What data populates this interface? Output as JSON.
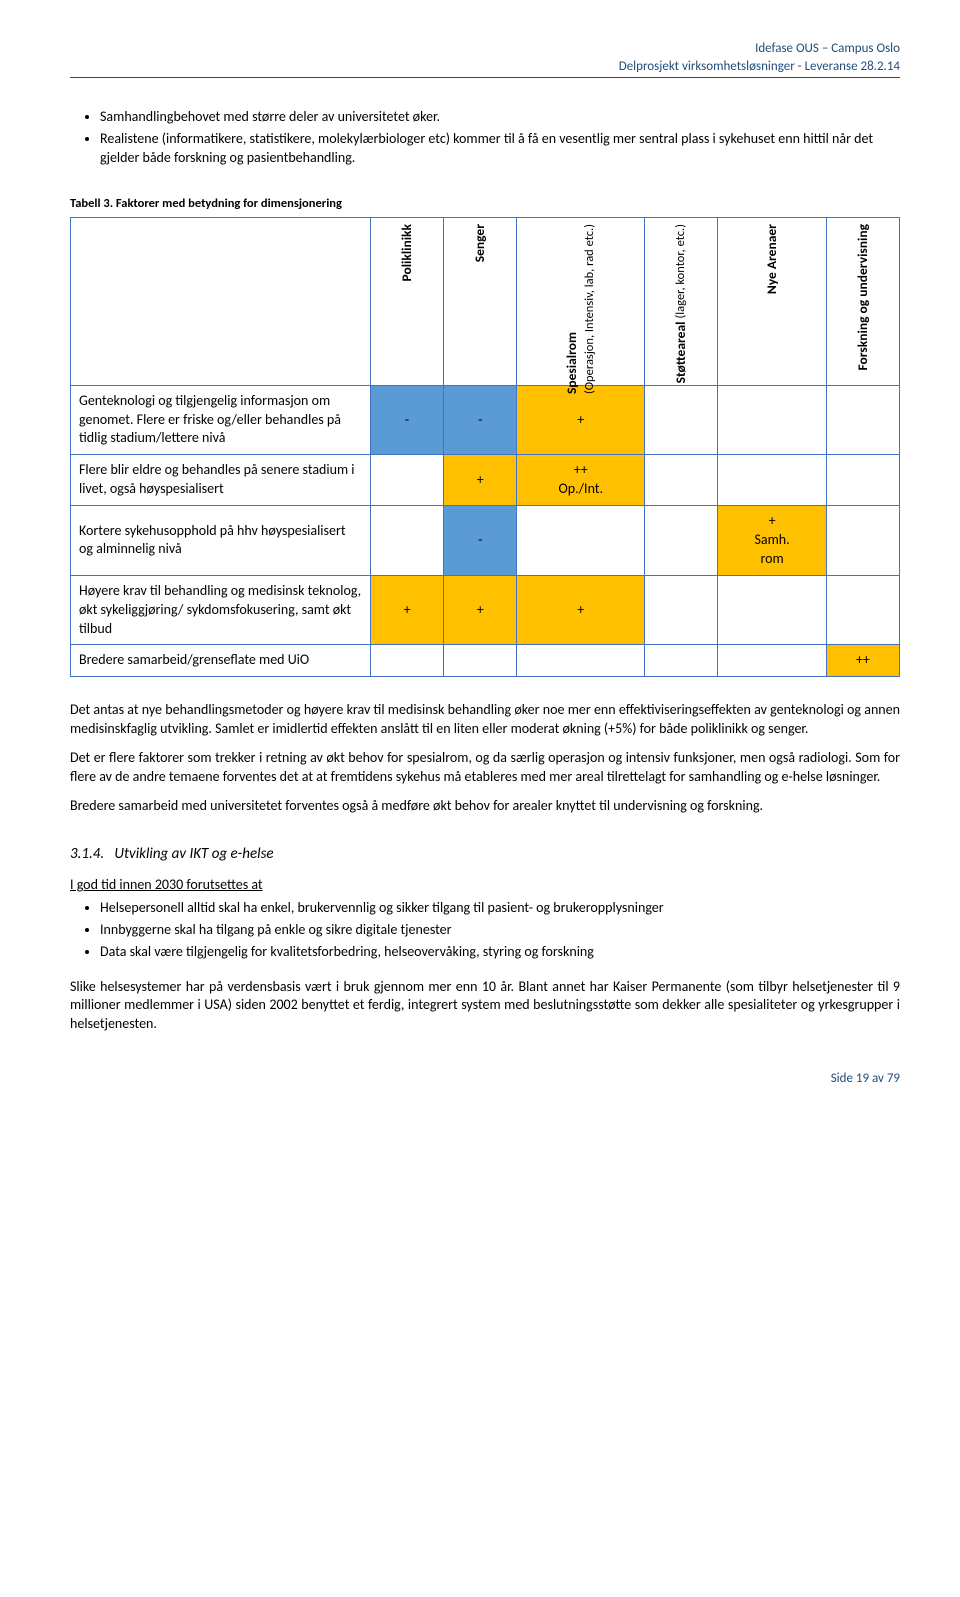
{
  "header": {
    "line1": "Idefase OUS – Campus Oslo",
    "line2": "Delprosjekt virksomhetsløsninger  - Leveranse 28.2.14"
  },
  "intro_bullets": [
    "Samhandlingbehovet med større deler av universitetet øker.",
    "Realistene (informatikere, statistikere, molekylærbiologer etc) kommer til å få en vesentlig mer sentral plass i sykehuset enn hittil når det gjelder både forskning og pasientbehandling."
  ],
  "table": {
    "caption": "Tabell 3. Faktorer med betydning for dimensjonering",
    "columns": [
      {
        "main": "Poliklinikk",
        "sub": ""
      },
      {
        "main": "Senger",
        "sub": ""
      },
      {
        "main": "Spesialrom",
        "sub": "(Operasjon, Intensiv, lab, rad etc.)"
      },
      {
        "main": "Støtteareal",
        "sub": "(lager, kontor, etc.)"
      },
      {
        "main": "Nye Arenaer",
        "sub": ""
      },
      {
        "main": "Forskning og undervisning",
        "sub": ""
      }
    ],
    "rows": [
      {
        "label": "Genteknologi og tilgjengelig informasjon om genomet. Flere er friske og/eller behandles på tidlig stadium/lettere nivå",
        "cells": [
          {
            "v": "-",
            "bg": "#5b9bd5"
          },
          {
            "v": "-",
            "bg": "#5b9bd5"
          },
          {
            "v": "+",
            "bg": "#ffc000"
          },
          {
            "v": "",
            "bg": ""
          },
          {
            "v": "",
            "bg": ""
          },
          {
            "v": "",
            "bg": ""
          }
        ]
      },
      {
        "label": "Flere blir eldre og behandles på senere stadium i livet, også høyspesialisert",
        "cells": [
          {
            "v": "",
            "bg": ""
          },
          {
            "v": "+",
            "bg": "#ffc000"
          },
          {
            "v": "++\nOp./Int.",
            "bg": "#ffc000"
          },
          {
            "v": "",
            "bg": ""
          },
          {
            "v": "",
            "bg": ""
          },
          {
            "v": "",
            "bg": ""
          }
        ]
      },
      {
        "label": "Kortere sykehusopphold på hhv høyspesialisert og alminnelig nivå",
        "cells": [
          {
            "v": "",
            "bg": ""
          },
          {
            "v": "-",
            "bg": "#5b9bd5"
          },
          {
            "v": "",
            "bg": ""
          },
          {
            "v": "",
            "bg": ""
          },
          {
            "v": "+\nSamh.\nrom",
            "bg": "#ffc000"
          },
          {
            "v": "",
            "bg": ""
          }
        ]
      },
      {
        "label": "Høyere krav til behandling og medisinsk teknolog, økt sykeliggjøring/ sykdomsfokusering, samt økt tilbud",
        "cells": [
          {
            "v": "+",
            "bg": "#ffc000"
          },
          {
            "v": "+",
            "bg": "#ffc000"
          },
          {
            "v": "+",
            "bg": "#ffc000"
          },
          {
            "v": "",
            "bg": ""
          },
          {
            "v": "",
            "bg": ""
          },
          {
            "v": "",
            "bg": ""
          }
        ]
      },
      {
        "label": "Bredere samarbeid/grenseflate med UiO",
        "cells": [
          {
            "v": "",
            "bg": ""
          },
          {
            "v": "",
            "bg": ""
          },
          {
            "v": "",
            "bg": ""
          },
          {
            "v": "",
            "bg": ""
          },
          {
            "v": "",
            "bg": ""
          },
          {
            "v": "++",
            "bg": "#ffc000"
          }
        ]
      }
    ]
  },
  "paras": [
    "Det antas at nye behandlingsmetoder og høyere krav til medisinsk behandling øker noe mer enn effektiviseringseffekten av genteknologi og annen medisinskfaglig utvikling. Samlet er imidlertid effekten anslått til en liten eller moderat økning (+5%) for både poliklinikk og senger.",
    "Det er flere faktorer som trekker i retning av økt behov for spesialrom, og da særlig operasjon og intensiv funksjoner, men også radiologi. Som for flere av de andre temaene forventes det at at fremtidens sykehus må etableres med mer areal tilrettelagt for samhandling og e-helse løsninger.",
    "Bredere samarbeid med universitetet forventes også å medføre økt behov for arealer knyttet til undervisning og forskning."
  ],
  "section": {
    "num": "3.1.4.",
    "title": "Utvikling av IKT og e-helse"
  },
  "lead": "I god tid innen 2030 forutsettes at",
  "sec_bullets": [
    "Helsepersonell alltid skal ha enkel, brukervennlig og sikker tilgang til pasient- og brukeropplysninger",
    "Innbyggerne skal ha tilgang på enkle og sikre digitale tjenester",
    "Data skal være tilgjengelig for kvalitetsforbedring, helseovervåking, styring og forskning"
  ],
  "closing": "Slike helsesystemer har på verdensbasis vært i bruk gjennom mer enn 10 år. Blant annet har Kaiser Permanente (som tilbyr helsetjenester til 9 millioner medlemmer i USA) siden 2002 benyttet et ferdig, integrert system med beslutningsstøtte som dekker alle spesialiteter og yrkesgrupper i helsetjenesten.",
  "footer": "Side 19 av 79",
  "colors": {
    "blue_fill": "#5b9bd5",
    "orange_fill": "#ffc000",
    "border": "#4472c4",
    "header_text": "#1f4e79"
  }
}
